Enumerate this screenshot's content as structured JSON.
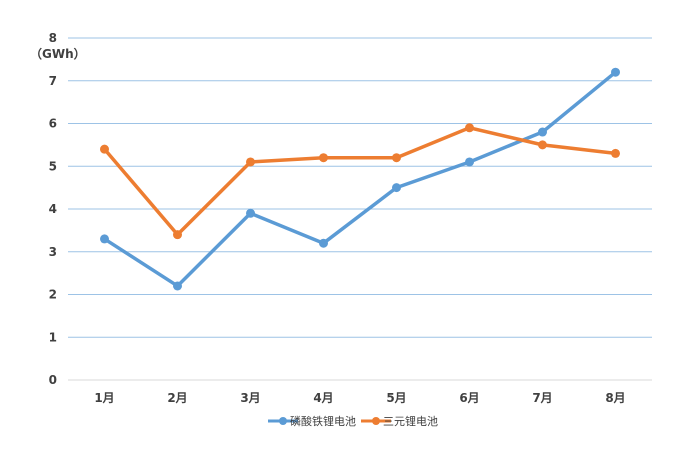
{
  "chart_data": {
    "type": "line",
    "unit_label": "（GWh）",
    "categories": [
      "1月",
      "2月",
      "3月",
      "4月",
      "5月",
      "6月",
      "7月",
      "8月"
    ],
    "y_ticks": [
      "0",
      "1",
      "2",
      "3",
      "4",
      "5",
      "6",
      "7",
      "8"
    ],
    "ylim": [
      0,
      8
    ],
    "grid": true,
    "legend_position": "bottom",
    "series": [
      {
        "name": "磷酸铁锂电池",
        "color": "#5B9BD5",
        "values": [
          3.3,
          2.2,
          3.9,
          3.2,
          4.5,
          5.1,
          5.8,
          7.2
        ]
      },
      {
        "name": "三元锂电池",
        "color": "#ED7D31",
        "values": [
          5.4,
          3.4,
          5.1,
          5.2,
          5.2,
          5.9,
          5.5,
          5.3
        ]
      }
    ]
  }
}
